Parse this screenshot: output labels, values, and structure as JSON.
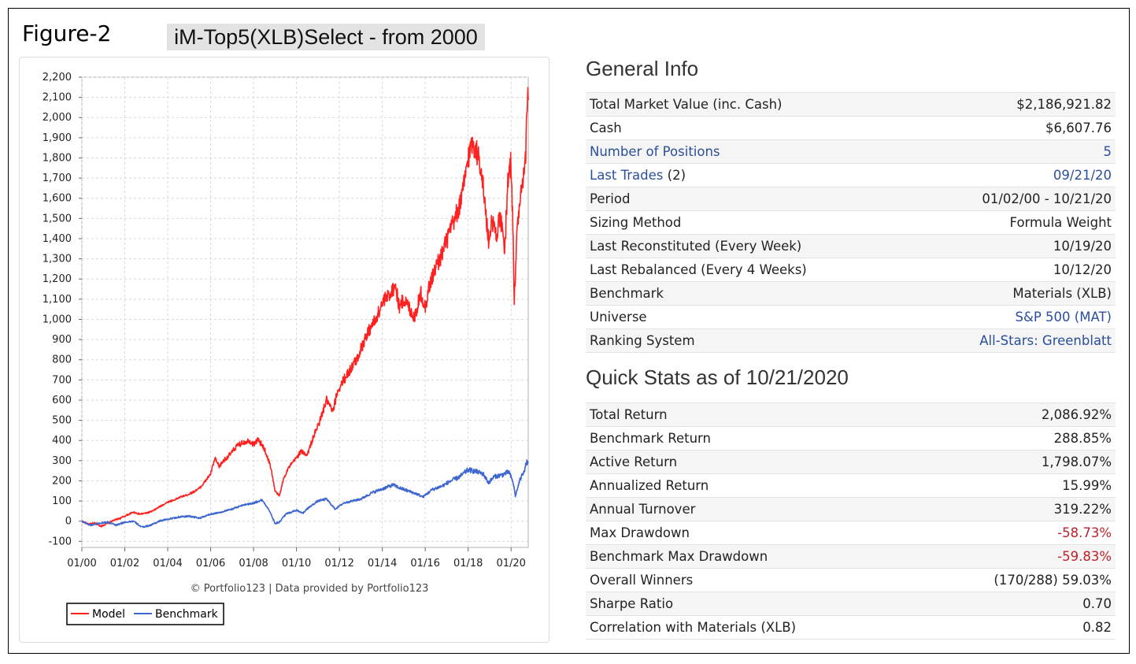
{
  "figure_label": "Figure-2",
  "figure_title": "iM-Top5(XLB)Select - from 2000",
  "general_info": {
    "heading": "General Info",
    "rows": [
      {
        "label": "Total Market Value (inc. Cash)",
        "value": "$2,186,921.82"
      },
      {
        "label": "Cash",
        "value": "$6,607.76"
      },
      {
        "label": "Number of Positions",
        "value": "5",
        "link": true
      },
      {
        "label": "Last Trades",
        "label_suffix": " (2)",
        "value": "09/21/20",
        "link": true
      },
      {
        "label": "Period",
        "value": "01/02/00 - 10/21/20"
      },
      {
        "label": "Sizing Method",
        "value": "Formula Weight"
      },
      {
        "label": "Last Reconstituted (Every Week)",
        "value": "10/19/20"
      },
      {
        "label": "Last Rebalanced (Every 4 Weeks)",
        "value": "10/12/20"
      },
      {
        "label": "Benchmark",
        "value": "Materials (XLB)"
      },
      {
        "label": "Universe",
        "value": "S&P 500 (MAT)",
        "value_link": true
      },
      {
        "label": "Ranking System",
        "value": "All-Stars: Greenblatt",
        "value_link": true
      }
    ]
  },
  "quick_stats": {
    "heading": "Quick Stats as of 10/21/2020",
    "rows": [
      {
        "label": "Total Return",
        "value": "2,086.92%"
      },
      {
        "label": "Benchmark Return",
        "value": "288.85%"
      },
      {
        "label": "Active Return",
        "value": "1,798.07%"
      },
      {
        "label": "Annualized Return",
        "value": "15.99%"
      },
      {
        "label": "Annual Turnover",
        "value": "319.22%"
      },
      {
        "label": "Max Drawdown",
        "value": "-58.73%",
        "negative": true
      },
      {
        "label": "Benchmark Max Drawdown",
        "value": "-59.83%",
        "negative": true
      },
      {
        "label": "Overall Winners",
        "value": "(170/288) 59.03%"
      },
      {
        "label": "Sharpe Ratio",
        "value": "0.70"
      },
      {
        "label": "Correlation with Materials (XLB)",
        "value": "0.82"
      }
    ]
  },
  "chart_data": {
    "type": "line",
    "credit": "© Portfolio123 | Data provided by Portfolio123",
    "ylim": [
      -130,
      2200
    ],
    "yticks": [
      -100,
      0,
      100,
      200,
      300,
      400,
      500,
      600,
      700,
      800,
      900,
      1000,
      1100,
      1200,
      1300,
      1400,
      1500,
      1600,
      1700,
      1800,
      1900,
      2000,
      2100,
      2200
    ],
    "ytick_labels": [
      "-100",
      "0",
      "100",
      "200",
      "300",
      "400",
      "500",
      "600",
      "700",
      "800",
      "900",
      "1,000",
      "1,100",
      "1,200",
      "1,300",
      "1,400",
      "1,500",
      "1,600",
      "1,700",
      "1,800",
      "1,900",
      "2,000",
      "2,100",
      "2,200"
    ],
    "xlim": [
      2000.0,
      2020.8
    ],
    "xticks": [
      2000,
      2002,
      2004,
      2006,
      2008,
      2010,
      2012,
      2014,
      2016,
      2018,
      2020
    ],
    "xtick_labels": [
      "01/00",
      "01/02",
      "01/04",
      "01/06",
      "01/08",
      "01/10",
      "01/12",
      "01/14",
      "01/16",
      "01/18",
      "01/20"
    ],
    "grid": true,
    "legend_position": "bottom-left",
    "series": [
      {
        "name": "Model",
        "color": "#ff2020",
        "points": [
          [
            2000.0,
            0
          ],
          [
            2000.3,
            -15
          ],
          [
            2000.6,
            -10
          ],
          [
            2000.9,
            -25
          ],
          [
            2001.2,
            -10
          ],
          [
            2001.5,
            5
          ],
          [
            2001.8,
            15
          ],
          [
            2002.1,
            30
          ],
          [
            2002.4,
            45
          ],
          [
            2002.7,
            35
          ],
          [
            2003.0,
            40
          ],
          [
            2003.3,
            50
          ],
          [
            2003.6,
            70
          ],
          [
            2004.0,
            95
          ],
          [
            2004.3,
            105
          ],
          [
            2004.6,
            120
          ],
          [
            2004.9,
            130
          ],
          [
            2005.2,
            145
          ],
          [
            2005.5,
            165
          ],
          [
            2005.8,
            205
          ],
          [
            2006.0,
            235
          ],
          [
            2006.2,
            310
          ],
          [
            2006.4,
            270
          ],
          [
            2006.6,
            300
          ],
          [
            2006.9,
            330
          ],
          [
            2007.2,
            370
          ],
          [
            2007.5,
            390
          ],
          [
            2007.8,
            400
          ],
          [
            2008.0,
            380
          ],
          [
            2008.2,
            405
          ],
          [
            2008.5,
            360
          ],
          [
            2008.8,
            270
          ],
          [
            2009.0,
            150
          ],
          [
            2009.2,
            125
          ],
          [
            2009.4,
            210
          ],
          [
            2009.6,
            260
          ],
          [
            2009.9,
            300
          ],
          [
            2010.2,
            345
          ],
          [
            2010.5,
            330
          ],
          [
            2010.8,
            420
          ],
          [
            2011.1,
            500
          ],
          [
            2011.4,
            600
          ],
          [
            2011.7,
            540
          ],
          [
            2011.9,
            640
          ],
          [
            2012.2,
            700
          ],
          [
            2012.5,
            750
          ],
          [
            2012.8,
            800
          ],
          [
            2013.1,
            880
          ],
          [
            2013.4,
            950
          ],
          [
            2013.7,
            1000
          ],
          [
            2014.0,
            1080
          ],
          [
            2014.3,
            1120
          ],
          [
            2014.6,
            1170
          ],
          [
            2014.8,
            1060
          ],
          [
            2015.0,
            1100
          ],
          [
            2015.3,
            1050
          ],
          [
            2015.5,
            1010
          ],
          [
            2015.8,
            1130
          ],
          [
            2016.0,
            1060
          ],
          [
            2016.2,
            1170
          ],
          [
            2016.5,
            1260
          ],
          [
            2016.8,
            1330
          ],
          [
            2017.1,
            1420
          ],
          [
            2017.4,
            1500
          ],
          [
            2017.7,
            1600
          ],
          [
            2018.0,
            1800
          ],
          [
            2018.2,
            1880
          ],
          [
            2018.4,
            1830
          ],
          [
            2018.6,
            1760
          ],
          [
            2018.8,
            1550
          ],
          [
            2018.95,
            1380
          ],
          [
            2019.1,
            1500
          ],
          [
            2019.3,
            1420
          ],
          [
            2019.5,
            1510
          ],
          [
            2019.7,
            1330
          ],
          [
            2019.85,
            1690
          ],
          [
            2020.0,
            1780
          ],
          [
            2020.1,
            1380
          ],
          [
            2020.15,
            1100
          ],
          [
            2020.3,
            1480
          ],
          [
            2020.5,
            1640
          ],
          [
            2020.65,
            1740
          ],
          [
            2020.7,
            1880
          ],
          [
            2020.75,
            2100
          ],
          [
            2020.8,
            2087
          ]
        ]
      },
      {
        "name": "Benchmark",
        "color": "#3d66cf",
        "points": [
          [
            2000.0,
            0
          ],
          [
            2000.4,
            -20
          ],
          [
            2000.8,
            -10
          ],
          [
            2001.2,
            -5
          ],
          [
            2001.6,
            -20
          ],
          [
            2002.0,
            -5
          ],
          [
            2002.4,
            0
          ],
          [
            2002.8,
            -30
          ],
          [
            2003.2,
            -20
          ],
          [
            2003.6,
            0
          ],
          [
            2004.0,
            10
          ],
          [
            2004.5,
            20
          ],
          [
            2005.0,
            25
          ],
          [
            2005.5,
            15
          ],
          [
            2006.0,
            35
          ],
          [
            2006.5,
            45
          ],
          [
            2007.0,
            60
          ],
          [
            2007.5,
            80
          ],
          [
            2008.0,
            90
          ],
          [
            2008.4,
            105
          ],
          [
            2008.7,
            60
          ],
          [
            2009.0,
            -10
          ],
          [
            2009.2,
            -5
          ],
          [
            2009.5,
            35
          ],
          [
            2010.0,
            55
          ],
          [
            2010.3,
            40
          ],
          [
            2010.6,
            70
          ],
          [
            2011.0,
            100
          ],
          [
            2011.4,
            110
          ],
          [
            2011.8,
            60
          ],
          [
            2012.2,
            90
          ],
          [
            2012.6,
            100
          ],
          [
            2013.0,
            110
          ],
          [
            2013.5,
            140
          ],
          [
            2014.0,
            160
          ],
          [
            2014.5,
            180
          ],
          [
            2014.8,
            165
          ],
          [
            2015.2,
            150
          ],
          [
            2015.6,
            135
          ],
          [
            2015.9,
            120
          ],
          [
            2016.3,
            155
          ],
          [
            2016.8,
            175
          ],
          [
            2017.2,
            200
          ],
          [
            2017.6,
            220
          ],
          [
            2018.0,
            255
          ],
          [
            2018.4,
            245
          ],
          [
            2018.7,
            235
          ],
          [
            2018.95,
            190
          ],
          [
            2019.2,
            220
          ],
          [
            2019.6,
            230
          ],
          [
            2019.9,
            245
          ],
          [
            2020.1,
            190
          ],
          [
            2020.2,
            125
          ],
          [
            2020.4,
            200
          ],
          [
            2020.6,
            250
          ],
          [
            2020.75,
            295
          ],
          [
            2020.8,
            289
          ]
        ]
      }
    ]
  }
}
